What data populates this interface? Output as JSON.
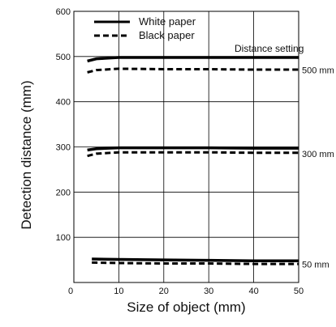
{
  "chart_data": {
    "type": "line",
    "xlabel": "Size of object (mm)",
    "ylabel": "Detection distance  (mm)",
    "xlim": [
      0,
      50
    ],
    "ylim": [
      0,
      600
    ],
    "x_ticks": [
      "0",
      "10",
      "20",
      "30",
      "40",
      "50"
    ],
    "y_ticks": [
      "100",
      "200",
      "300",
      "400",
      "500",
      "600"
    ],
    "grid": true,
    "legend_position": "top-left",
    "distance_setting_label": "Distance setting",
    "setting_labels": [
      {
        "text": "500 mm",
        "y": 470
      },
      {
        "text": "300 mm",
        "y": 285
      },
      {
        "text": "50 mm",
        "y": 40
      }
    ],
    "series": [
      {
        "name": "White paper",
        "style": "solid",
        "group": "500 mm",
        "x": [
          3,
          5,
          10,
          20,
          30,
          40,
          50
        ],
        "y": [
          490,
          495,
          498,
          498,
          498,
          498,
          498
        ]
      },
      {
        "name": "Black paper",
        "style": "dashed",
        "group": "500 mm",
        "x": [
          3,
          5,
          10,
          20,
          30,
          40,
          50
        ],
        "y": [
          465,
          470,
          473,
          472,
          472,
          471,
          471
        ]
      },
      {
        "name": "White paper",
        "style": "solid",
        "group": "300 mm",
        "x": [
          3,
          5,
          10,
          20,
          30,
          40,
          50
        ],
        "y": [
          293,
          296,
          298,
          298,
          298,
          297,
          297
        ]
      },
      {
        "name": "Black paper",
        "style": "dashed",
        "group": "300 mm",
        "x": [
          3,
          5,
          10,
          20,
          30,
          40,
          50
        ],
        "y": [
          280,
          285,
          288,
          288,
          288,
          287,
          287
        ]
      },
      {
        "name": "White paper",
        "style": "solid",
        "group": "50 mm",
        "x": [
          4,
          10,
          20,
          30,
          40,
          50
        ],
        "y": [
          52,
          51,
          50,
          49,
          48,
          48
        ]
      },
      {
        "name": "Black paper",
        "style": "dashed",
        "group": "50 mm",
        "x": [
          4,
          10,
          20,
          30,
          40,
          50
        ],
        "y": [
          44,
          43,
          42,
          42,
          41,
          41
        ]
      }
    ],
    "colors": {
      "line": "#000000",
      "grid": "#000000",
      "background": "#ffffff"
    }
  }
}
